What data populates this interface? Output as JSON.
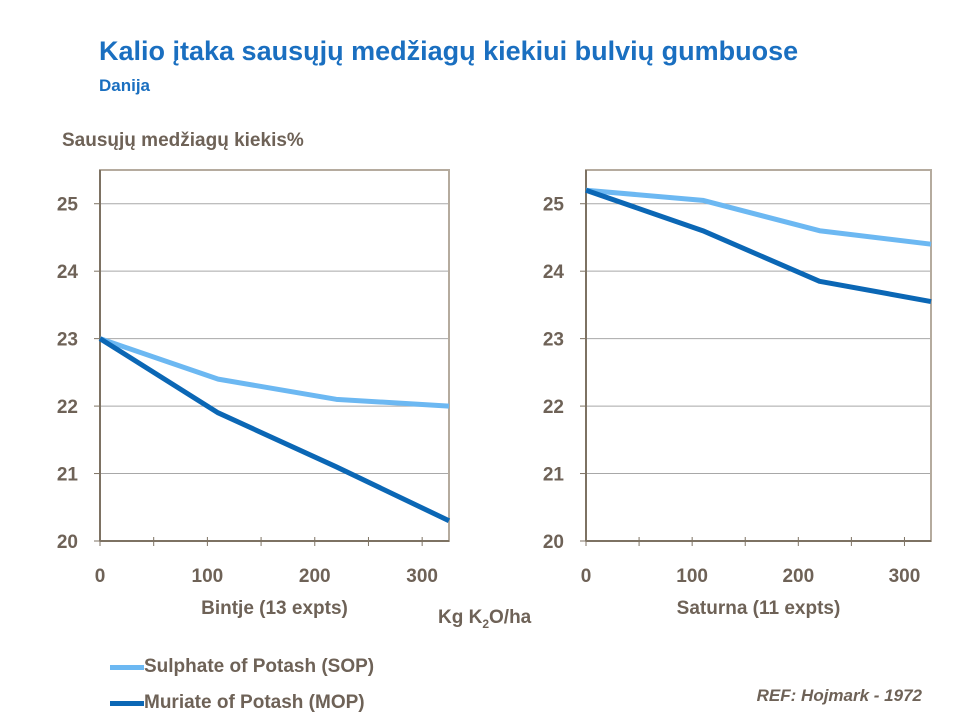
{
  "title": "Kalio įtaka sausųjų medžiagų kiekiui bulvių gumbuose",
  "subtitle": "Danija",
  "reference": "REF: Hojmark - 1972",
  "colors": {
    "sop": "#6cb8f2",
    "mop": "#0b67b5",
    "text": "#6e6257",
    "title": "#1a6fc0"
  },
  "legend": [
    {
      "label": "Sulphate of Potash (SOP)",
      "color": "#6cb8f2"
    },
    {
      "label": "Muriate of Potash (MOP)",
      "color": "#0b67b5"
    }
  ],
  "shared": {
    "ylabel": "Sausųjų medžiagų kiekis%",
    "xlabel_main": "Kg K",
    "xlabel_sub": "2",
    "xlabel_tail": "O/ha"
  },
  "chart_data": [
    {
      "type": "line",
      "xlabel": "Bintje (13 expts)",
      "ylabel": "Sausųjų medžiagų kiekis%",
      "xlim": [
        0,
        325
      ],
      "ylim": [
        20,
        25.5
      ],
      "xticks": [
        0,
        100,
        200,
        300
      ],
      "yticks": [
        20,
        21,
        22,
        23,
        24,
        25
      ],
      "grid": true,
      "series": [
        {
          "name": "Sulphate of Potash (SOP)",
          "x": [
            0,
            110,
            220,
            325
          ],
          "y": [
            23.0,
            22.4,
            22.1,
            22.0
          ]
        },
        {
          "name": "Muriate of Potash (MOP)",
          "x": [
            0,
            110,
            220,
            325
          ],
          "y": [
            23.0,
            21.9,
            21.1,
            20.3
          ]
        }
      ]
    },
    {
      "type": "line",
      "xlabel": "Saturna (11 expts)",
      "xlim": [
        0,
        325
      ],
      "ylim": [
        20,
        25.5
      ],
      "xticks": [
        0,
        100,
        200,
        300
      ],
      "yticks": [
        20,
        21,
        22,
        23,
        24,
        25
      ],
      "grid": true,
      "series": [
        {
          "name": "Sulphate of Potash (SOP)",
          "x": [
            0,
            110,
            220,
            325
          ],
          "y": [
            25.2,
            25.05,
            24.6,
            24.4
          ]
        },
        {
          "name": "Muriate of Potash (MOP)",
          "x": [
            0,
            110,
            220,
            325
          ],
          "y": [
            25.2,
            24.6,
            23.85,
            23.55
          ]
        }
      ]
    }
  ]
}
